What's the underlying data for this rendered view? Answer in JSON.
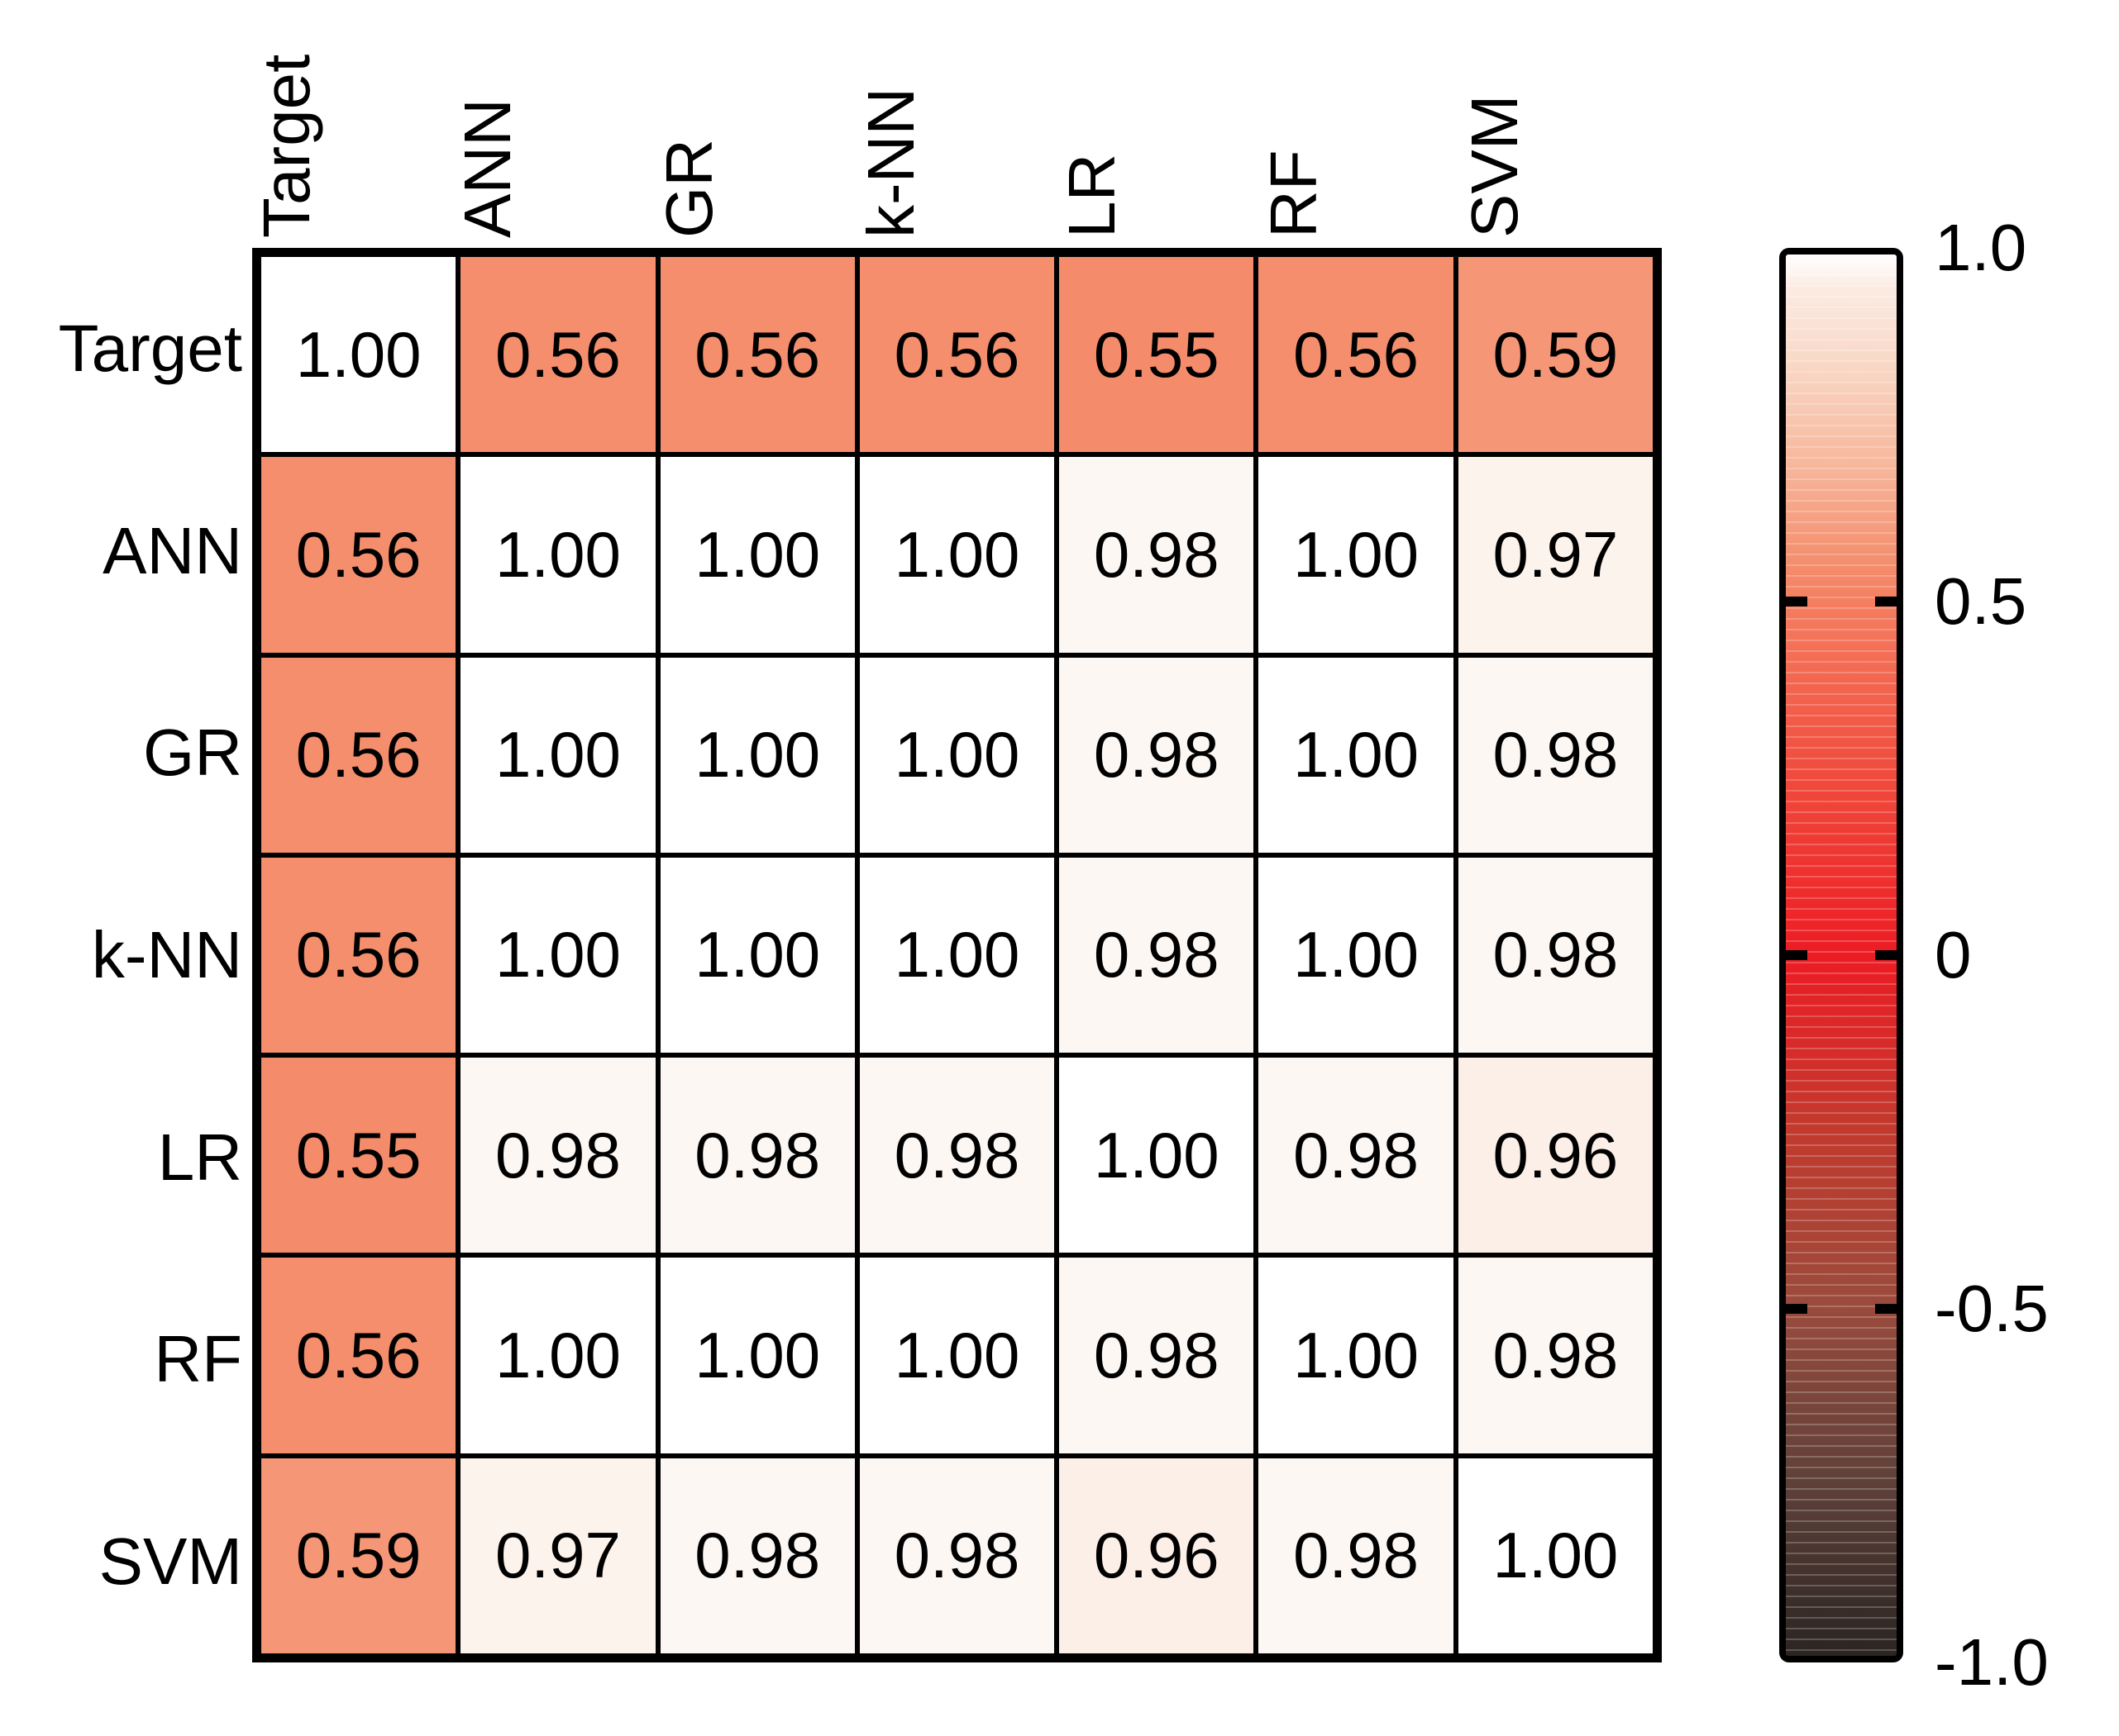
{
  "chart_data": {
    "type": "heatmap",
    "title": "",
    "categories": [
      "Target",
      "ANN",
      "GR",
      "k-NN",
      "LR",
      "RF",
      "SVM"
    ],
    "matrix": [
      [
        1.0,
        0.56,
        0.56,
        0.56,
        0.55,
        0.56,
        0.59
      ],
      [
        0.56,
        1.0,
        1.0,
        1.0,
        0.98,
        1.0,
        0.97
      ],
      [
        0.56,
        1.0,
        1.0,
        1.0,
        0.98,
        1.0,
        0.98
      ],
      [
        0.56,
        1.0,
        1.0,
        1.0,
        0.98,
        1.0,
        0.98
      ],
      [
        0.55,
        0.98,
        0.98,
        0.98,
        1.0,
        0.98,
        0.96
      ],
      [
        0.56,
        1.0,
        1.0,
        1.0,
        0.98,
        1.0,
        0.98
      ],
      [
        0.59,
        0.97,
        0.98,
        0.98,
        0.96,
        0.98,
        1.0
      ]
    ],
    "value_decimals": 2,
    "grid": "on",
    "colorbar": {
      "range": [
        -1,
        1
      ],
      "tick_values": [
        1,
        0.5,
        0,
        -0.5,
        -1
      ],
      "tick_labels": [
        "1.0",
        "0.5",
        "0",
        "-0.5",
        "-1.0"
      ],
      "ticks_with_marks": [
        0.5,
        0,
        -0.5
      ],
      "position": "right"
    },
    "colormap_stops": [
      {
        "v": 1.0,
        "c": "#FFFFFF"
      },
      {
        "v": 0.95,
        "c": "#FBEBE1"
      },
      {
        "v": 0.85,
        "c": "#F9D9C8"
      },
      {
        "v": 0.7,
        "c": "#F7B79C"
      },
      {
        "v": 0.56,
        "c": "#F48E6D"
      },
      {
        "v": 0.5,
        "c": "#F47D60"
      },
      {
        "v": 0.25,
        "c": "#F04A3C"
      },
      {
        "v": 0.0,
        "c": "#EC1C24"
      },
      {
        "v": -0.25,
        "c": "#C23A2E"
      },
      {
        "v": -0.5,
        "c": "#9A4B3C"
      },
      {
        "v": -0.75,
        "c": "#5F413A"
      },
      {
        "v": -1.0,
        "c": "#2B2522"
      }
    ],
    "colors": {
      "grid_line": "#000000",
      "text": "#000000",
      "background": "#FFFFFF"
    }
  }
}
